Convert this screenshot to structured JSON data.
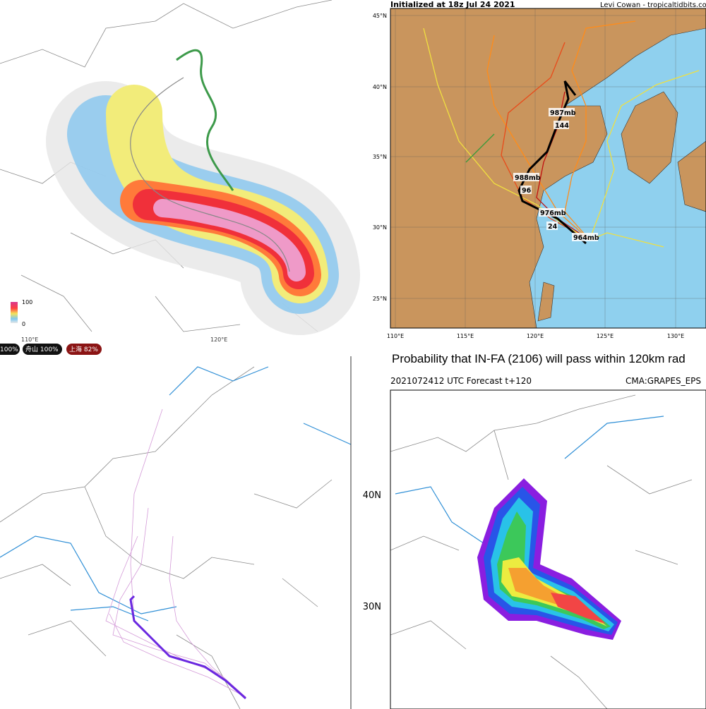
{
  "ensemble_swath": {
    "legend_max": "100",
    "legend_min": "0",
    "lon_labels": [
      "110°E",
      "120°E"
    ],
    "badges": [
      "100%",
      "舟山 100%",
      "上海 82%"
    ]
  },
  "tropicaltidbits": {
    "title": "Initialized at 18z Jul 24 2021",
    "credit": "Levi Cowan - tropicaltidbits.com",
    "lat_labels": [
      "45°N",
      "40°N",
      "35°N",
      "30°N",
      "25°N"
    ],
    "lon_labels": [
      "110°E",
      "115°E",
      "120°E",
      "125°E",
      "130°E"
    ],
    "track_labels": [
      "987mb",
      "144",
      "988mb",
      "96",
      "976mb",
      "24",
      "964mb"
    ]
  },
  "cma_probability": {
    "title": "Probability that IN-FA (2106) will pass within 120km rad",
    "subtitle": "2021072412 UTC Forecast t+120",
    "model": "CMA:GRAPES_EPS",
    "lat_labels": [
      "40N",
      "30N"
    ]
  }
}
